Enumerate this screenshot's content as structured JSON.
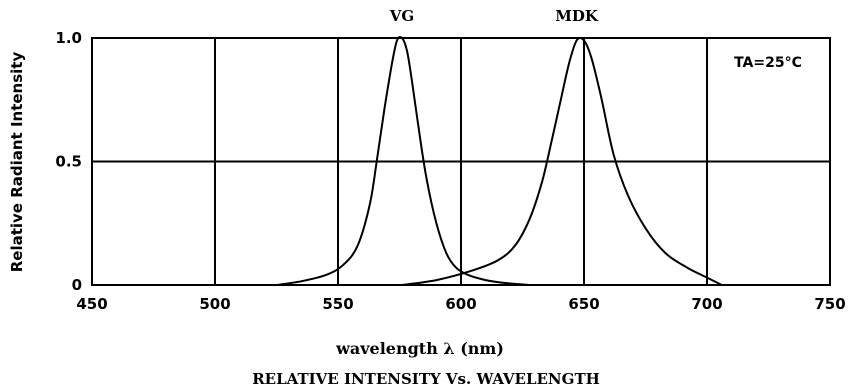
{
  "chart_data": {
    "type": "line",
    "title": "RELATIVE INTENSITY Vs. WAVELENGTH",
    "xlabel": "wavelength λ (nm)",
    "ylabel": "Relative Radiant Intensity",
    "annotation": "TA=25°C",
    "xlim": [
      450,
      750
    ],
    "ylim": [
      0,
      1.0
    ],
    "x_ticks": [
      "450",
      "500",
      "550",
      "600",
      "650",
      "700",
      "750"
    ],
    "y_ticks": [
      "0",
      "0.5",
      "1.0"
    ],
    "grid": true,
    "series": [
      {
        "name": "VG",
        "x": [
          525,
          535,
          545,
          552,
          558,
          563,
          566,
          569,
          572,
          574,
          576,
          578,
          580,
          583,
          586,
          590,
          594,
          598,
          603,
          610,
          618,
          628
        ],
        "y": [
          0,
          0.015,
          0.04,
          0.08,
          0.16,
          0.33,
          0.52,
          0.72,
          0.9,
          0.99,
          1.0,
          0.95,
          0.83,
          0.62,
          0.43,
          0.25,
          0.13,
          0.07,
          0.04,
          0.02,
          0.008,
          0
        ]
      },
      {
        "name": "MDK",
        "x": [
          576,
          590,
          605,
          615,
          622,
          628,
          633,
          637,
          641,
          644,
          647,
          650,
          653,
          657,
          662,
          668,
          675,
          683,
          692,
          700,
          706
        ],
        "y": [
          0,
          0.02,
          0.06,
          0.1,
          0.16,
          0.27,
          0.42,
          0.59,
          0.77,
          0.9,
          0.99,
          0.99,
          0.92,
          0.76,
          0.53,
          0.36,
          0.23,
          0.13,
          0.07,
          0.03,
          0
        ]
      }
    ]
  }
}
